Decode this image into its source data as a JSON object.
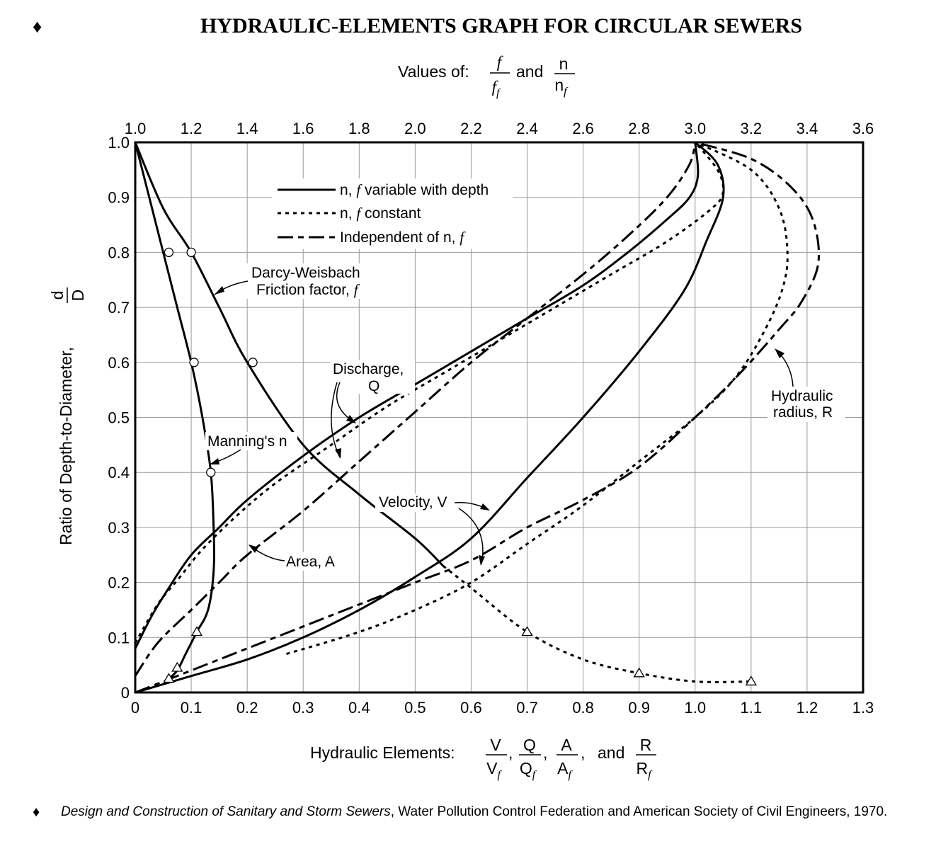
{
  "title": "HYDRAULIC-ELEMENTS GRAPH FOR CIRCULAR SEWERS",
  "title_marker": "♦",
  "top_axis_label": {
    "prefix": "Values of:",
    "frac1_num": "f",
    "frac1_den": "f",
    "frac1_den_sub": "f",
    "joiner": "and",
    "frac2_num": "n",
    "frac2_den": "n",
    "frac2_den_sub": "f"
  },
  "bottom_axis_label": {
    "prefix": "Hydraulic Elements:",
    "fracs": [
      {
        "num": "V",
        "den": "V",
        "sub": "f"
      },
      {
        "num": "Q",
        "den": "Q",
        "sub": "f"
      },
      {
        "num": "A",
        "den": "A",
        "sub": "f"
      },
      {
        "num": "R",
        "den": "R",
        "sub": "f"
      }
    ],
    "sep": ",",
    "joiner": "and"
  },
  "y_axis_label": {
    "text": "Ratio of Depth-to-Diameter,",
    "num": "d",
    "den": "D"
  },
  "legend": [
    {
      "style": "solid",
      "label_pre": "n,",
      "label_f": "f",
      "label_post": "variable with depth"
    },
    {
      "style": "dotted",
      "label_pre": "n,",
      "label_f": "f",
      "label_post": "constant"
    },
    {
      "style": "dashed",
      "label_pre": "Independent of n,",
      "label_f": "f",
      "label_post": ""
    }
  ],
  "annotations": {
    "darcy_line1": "Darcy-Weisbach",
    "darcy_line2": "Friction factor,",
    "darcy_f": "f",
    "discharge_line1": "Discharge,",
    "discharge_line2": "Q",
    "manning": "Manning's n",
    "velocity": "Velocity, V",
    "area": "Area, A",
    "radius_line1": "Hydraulic",
    "radius_line2": "radius, R"
  },
  "source": {
    "marker": "♦",
    "italic": "Design and Construction of Sanitary and Storm Sewers",
    "rest": ", Water Pollution Control Federation and American Society of Civil Engineers, 1970."
  },
  "chart_data": {
    "type": "line",
    "x_bottom": {
      "min": 0,
      "max": 1.3,
      "ticks": [
        "0",
        "0.1",
        "0.2",
        "0.3",
        "0.4",
        "0.5",
        "0.6",
        "0.7",
        "0.8",
        "0.9",
        "1.0",
        "1.1",
        "1.2",
        "1.3"
      ]
    },
    "x_top": {
      "min": 1.0,
      "max": 3.6,
      "ticks": [
        "1.0",
        "1.2",
        "1.4",
        "1.6",
        "1.8",
        "2.0",
        "2.2",
        "2.4",
        "2.6",
        "2.8",
        "3.0",
        "3.2",
        "3.4",
        "3.6"
      ]
    },
    "y": {
      "min": 0,
      "max": 1.0,
      "ticks": [
        "0",
        "0.1",
        "0.2",
        "0.3",
        "0.4",
        "0.5",
        "0.6",
        "0.7",
        "0.8",
        "0.9",
        "1.0"
      ]
    },
    "grid": true,
    "series": [
      {
        "name": "Discharge, Q",
        "style": "solid",
        "axis": "bottom",
        "points": [
          [
            0,
            0.08
          ],
          [
            0.03,
            0.14
          ],
          [
            0.06,
            0.19
          ],
          [
            0.1,
            0.25
          ],
          [
            0.15,
            0.3
          ],
          [
            0.2,
            0.35
          ],
          [
            0.3,
            0.43
          ],
          [
            0.4,
            0.5
          ],
          [
            0.5,
            0.56
          ],
          [
            0.6,
            0.62
          ],
          [
            0.7,
            0.68
          ],
          [
            0.8,
            0.74
          ],
          [
            0.88,
            0.8
          ],
          [
            0.95,
            0.86
          ],
          [
            0.99,
            0.9
          ],
          [
            1.005,
            0.94
          ],
          [
            1.0,
            1.0
          ]
        ]
      },
      {
        "name": "Discharge, Q",
        "style": "dotted",
        "axis": "bottom",
        "points": [
          [
            0,
            0.09
          ],
          [
            0.04,
            0.16
          ],
          [
            0.08,
            0.21
          ],
          [
            0.12,
            0.26
          ],
          [
            0.18,
            0.32
          ],
          [
            0.25,
            0.38
          ],
          [
            0.35,
            0.45
          ],
          [
            0.45,
            0.52
          ],
          [
            0.55,
            0.58
          ],
          [
            0.65,
            0.64
          ],
          [
            0.75,
            0.7
          ],
          [
            0.85,
            0.76
          ],
          [
            0.95,
            0.82
          ],
          [
            1.03,
            0.88
          ],
          [
            1.05,
            0.91
          ],
          [
            1.04,
            0.95
          ],
          [
            1.0,
            1.0
          ]
        ]
      },
      {
        "name": "Discharge, Q",
        "style": "dashed",
        "axis": "bottom",
        "points": [
          [
            0,
            0.03
          ],
          [
            0.04,
            0.09
          ],
          [
            0.1,
            0.15
          ],
          [
            0.15,
            0.2
          ],
          [
            0.2,
            0.25
          ],
          [
            0.3,
            0.33
          ],
          [
            0.4,
            0.42
          ],
          [
            0.5,
            0.51
          ],
          [
            0.6,
            0.6
          ],
          [
            0.7,
            0.68
          ],
          [
            0.8,
            0.76
          ],
          [
            0.88,
            0.83
          ],
          [
            0.95,
            0.9
          ],
          [
            0.99,
            0.96
          ],
          [
            1.0,
            1.0
          ]
        ]
      },
      {
        "name": "Area, A",
        "style": "dashed",
        "axis": "bottom",
        "points": [
          [
            0,
            0
          ],
          [
            0.05,
            0.02
          ],
          [
            0.1,
            0.04
          ],
          [
            0.2,
            0.08
          ],
          [
            0.3,
            0.12
          ],
          [
            0.4,
            0.16
          ],
          [
            0.5,
            0.2
          ],
          [
            0.6,
            0.24
          ],
          [
            0.7,
            0.3
          ],
          [
            0.8,
            0.35
          ],
          [
            0.9,
            0.41
          ],
          [
            1.0,
            0.5
          ],
          [
            1.08,
            0.58
          ],
          [
            1.15,
            0.66
          ],
          [
            1.19,
            0.71
          ],
          [
            1.22,
            0.78
          ],
          [
            1.21,
            0.86
          ],
          [
            1.17,
            0.92
          ],
          [
            1.1,
            0.97
          ],
          [
            1.0,
            1.0
          ]
        ]
      },
      {
        "name": "Velocity, V",
        "style": "solid",
        "axis": "bottom",
        "points": [
          [
            0,
            0
          ],
          [
            0.1,
            0.03
          ],
          [
            0.2,
            0.06
          ],
          [
            0.3,
            0.1
          ],
          [
            0.4,
            0.15
          ],
          [
            0.5,
            0.21
          ],
          [
            0.6,
            0.28
          ],
          [
            0.7,
            0.39
          ],
          [
            0.8,
            0.5
          ],
          [
            0.9,
            0.62
          ],
          [
            0.98,
            0.73
          ],
          [
            1.02,
            0.82
          ],
          [
            1.05,
            0.9
          ],
          [
            1.04,
            0.96
          ],
          [
            1.0,
            1.0
          ]
        ]
      },
      {
        "name": "Velocity, V",
        "style": "dotted",
        "axis": "bottom",
        "points": [
          [
            0.27,
            0.07
          ],
          [
            0.4,
            0.11
          ],
          [
            0.5,
            0.15
          ],
          [
            0.6,
            0.2
          ],
          [
            0.7,
            0.27
          ],
          [
            0.8,
            0.34
          ],
          [
            0.9,
            0.42
          ],
          [
            1.0,
            0.5
          ],
          [
            1.07,
            0.57
          ],
          [
            1.12,
            0.65
          ],
          [
            1.155,
            0.73
          ],
          [
            1.165,
            0.8
          ],
          [
            1.15,
            0.88
          ],
          [
            1.1,
            0.95
          ],
          [
            1.0,
            1.0
          ]
        ]
      },
      {
        "name": "Darcy-Weisbach Friction factor, f",
        "style": "solid",
        "axis": "top",
        "points": [
          [
            1.0,
            1.0
          ],
          [
            1.1,
            0.88
          ],
          [
            1.2,
            0.8
          ],
          [
            1.3,
            0.7
          ],
          [
            1.4,
            0.6
          ],
          [
            1.6,
            0.45
          ],
          [
            1.8,
            0.36
          ],
          [
            2.0,
            0.28
          ],
          [
            2.1,
            0.23
          ]
        ]
      },
      {
        "name": "Darcy-Weisbach Friction factor, f",
        "style": "dotted",
        "axis": "top",
        "points": [
          [
            2.1,
            0.23
          ],
          [
            2.2,
            0.19
          ],
          [
            2.4,
            0.11
          ],
          [
            2.6,
            0.06
          ],
          [
            2.8,
            0.035
          ],
          [
            3.0,
            0.02
          ],
          [
            3.2,
            0.02
          ]
        ]
      },
      {
        "name": "Manning's n",
        "style": "solid",
        "axis": "top",
        "points": [
          [
            1.0,
            1.0
          ],
          [
            1.1,
            0.8
          ],
          [
            1.15,
            0.7
          ],
          [
            1.2,
            0.6
          ],
          [
            1.24,
            0.5
          ],
          [
            1.27,
            0.4
          ],
          [
            1.28,
            0.3
          ],
          [
            1.28,
            0.22
          ],
          [
            1.26,
            0.15
          ],
          [
            1.22,
            0.11
          ],
          [
            1.18,
            0.07
          ],
          [
            1.15,
            0.04
          ],
          [
            1.12,
            0.025
          ]
        ]
      }
    ],
    "markers_circle": [
      [
        1.12,
        0.8
      ],
      [
        1.2,
        0.8
      ],
      [
        1.21,
        0.6
      ],
      [
        1.42,
        0.6
      ],
      [
        1.27,
        0.4
      ]
    ],
    "markers_triangle": [
      [
        1.12,
        0.025
      ],
      [
        1.15,
        0.045
      ],
      [
        1.22,
        0.11
      ],
      [
        2.4,
        0.11
      ],
      [
        2.8,
        0.035
      ],
      [
        3.2,
        0.02
      ]
    ]
  }
}
